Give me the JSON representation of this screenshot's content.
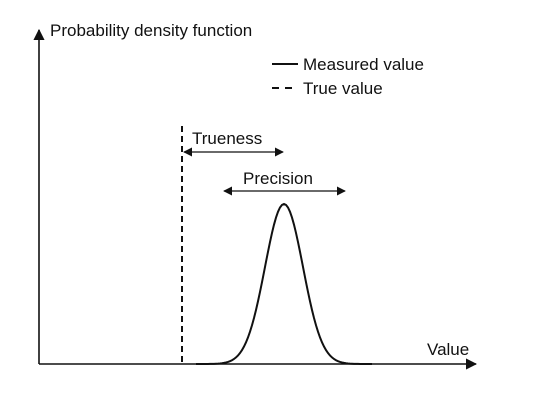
{
  "diagram": {
    "y_axis_label": "Probability density function",
    "x_axis_label": "Value",
    "legend": {
      "measured_label": "Measured value",
      "true_label": "True value"
    },
    "trueness_label": "Trueness",
    "precision_label": "Precision"
  },
  "colors": {
    "ink": "#111111",
    "background": "#ffffff"
  }
}
